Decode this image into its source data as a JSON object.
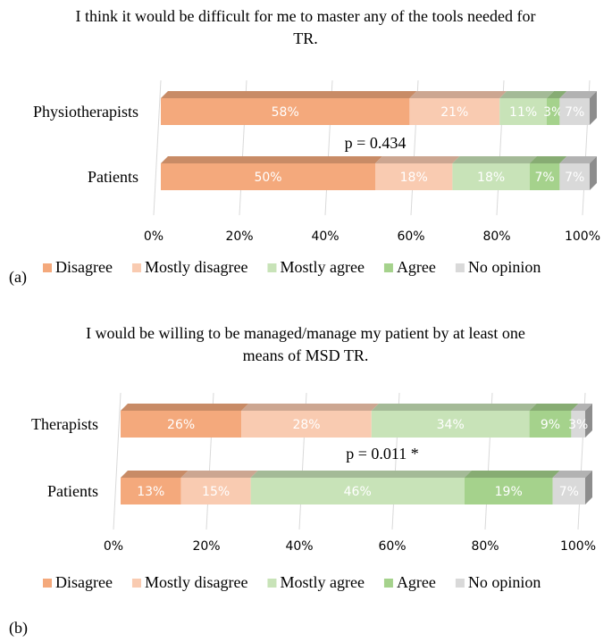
{
  "chart_data": [
    {
      "type": "bar",
      "stacked": true,
      "orientation": "horizontal",
      "title": [
        "I think it would be difficult for me to master any of the tools needed for",
        "TR."
      ],
      "categories": [
        "Physiotherapists",
        "Patients"
      ],
      "series": [
        {
          "name": "Disagree",
          "color": "#f4a97c",
          "values": [
            58,
            50
          ],
          "value_labels": [
            "58%",
            "50%"
          ]
        },
        {
          "name": "Mostly disagree",
          "color": "#f9cbb1",
          "values": [
            21,
            18
          ],
          "value_labels": [
            "21%",
            "18%"
          ]
        },
        {
          "name": "Mostly agree",
          "color": "#c8e3b8",
          "values": [
            11,
            18
          ],
          "value_labels": [
            "11%",
            "18%"
          ]
        },
        {
          "name": "Agree",
          "color": "#a5d28c",
          "values": [
            3,
            7
          ],
          "value_labels": [
            "3%",
            "7%"
          ]
        },
        {
          "name": "No opinion",
          "color": "#d9d9d9",
          "values": [
            7,
            7
          ],
          "value_labels": [
            "7%",
            "7%"
          ]
        }
      ],
      "xlim": [
        0,
        100
      ],
      "xticks": [
        {
          "value": 0,
          "label": "0%"
        },
        {
          "value": 20,
          "label": "20%"
        },
        {
          "value": 40,
          "label": "40%"
        },
        {
          "value": 60,
          "label": "60%"
        },
        {
          "value": 80,
          "label": "80%"
        },
        {
          "value": 100,
          "label": "100%"
        }
      ],
      "grid": true,
      "legend": "bottom",
      "annotations": [
        "p = 0.434",
        "(a)"
      ]
    },
    {
      "type": "bar",
      "stacked": true,
      "orientation": "horizontal",
      "title": [
        "I would be willing to be managed/manage my patient by at least one",
        "means of MSD TR."
      ],
      "categories": [
        "Therapists",
        "Patients"
      ],
      "series": [
        {
          "name": "Disagree",
          "color": "#f4a97c",
          "values": [
            26,
            13
          ],
          "value_labels": [
            "26%",
            "13%"
          ]
        },
        {
          "name": "Mostly disagree",
          "color": "#f9cbb1",
          "values": [
            28,
            15
          ],
          "value_labels": [
            "28%",
            "15%"
          ]
        },
        {
          "name": "Mostly agree",
          "color": "#c8e3b8",
          "values": [
            34,
            46
          ],
          "value_labels": [
            "34%",
            "46%"
          ]
        },
        {
          "name": "Agree",
          "color": "#a5d28c",
          "values": [
            9,
            19
          ],
          "value_labels": [
            "9%",
            "19%"
          ]
        },
        {
          "name": "No opinion",
          "color": "#d9d9d9",
          "values": [
            3,
            7
          ],
          "value_labels": [
            "3%",
            "7%"
          ]
        }
      ],
      "xlim": [
        0,
        100
      ],
      "xticks": [
        {
          "value": 0,
          "label": "0%"
        },
        {
          "value": 20,
          "label": "20%"
        },
        {
          "value": 40,
          "label": "40%"
        },
        {
          "value": 60,
          "label": "60%"
        },
        {
          "value": 80,
          "label": "80%"
        },
        {
          "value": 100,
          "label": "100%"
        }
      ],
      "grid": true,
      "legend": "bottom",
      "annotations": [
        "p = 0.011 *",
        "(b)"
      ]
    }
  ]
}
